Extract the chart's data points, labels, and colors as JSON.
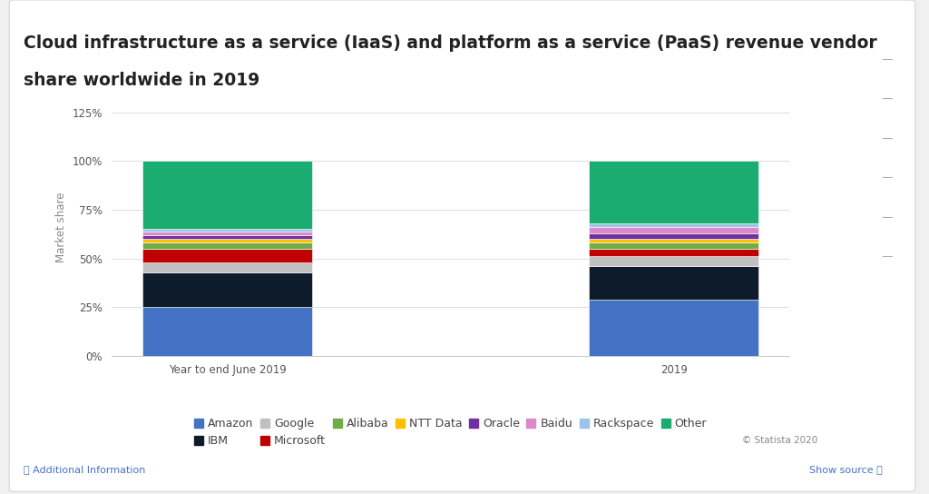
{
  "categories": [
    "Year to end June 2019",
    "2019"
  ],
  "series": [
    {
      "label": "Amazon",
      "values": [
        25,
        29
      ],
      "color": "#4472C4"
    },
    {
      "label": "IBM",
      "values": [
        18,
        17
      ],
      "color": "#0D1B2A"
    },
    {
      "label": "Google",
      "values": [
        5,
        5
      ],
      "color": "#C0C0C0"
    },
    {
      "label": "Microsoft",
      "values": [
        7,
        4
      ],
      "color": "#C00000"
    },
    {
      "label": "Alibaba",
      "values": [
        3,
        3
      ],
      "color": "#70AD47"
    },
    {
      "label": "NTT Data",
      "values": [
        2,
        2
      ],
      "color": "#FFC000"
    },
    {
      "label": "Oracle",
      "values": [
        2,
        3
      ],
      "color": "#7030A0"
    },
    {
      "label": "Baidu",
      "values": [
        2,
        3
      ],
      "color": "#DD88CC"
    },
    {
      "label": "Rackspace",
      "values": [
        1,
        2
      ],
      "color": "#9DC3E6"
    },
    {
      "label": "Other",
      "values": [
        35,
        32
      ],
      "color": "#1BAC72"
    }
  ],
  "ylabel": "Market share",
  "yticks": [
    0,
    25,
    50,
    75,
    100,
    125
  ],
  "ytick_labels": [
    "0%",
    "25%",
    "50%",
    "75%",
    "100%",
    "125%"
  ],
  "ylim": [
    0,
    132
  ],
  "title_line1": "Cloud infrastructure as a service (IaaS) and platform as a service (PaaS) revenue vendor",
  "title_line2": "share worldwide in 2019",
  "title_fontsize": 13.5,
  "background_color": "#F0F0F0",
  "card_color": "#FFFFFF",
  "plot_bg_color": "#FFFFFF",
  "bar_width": 0.38,
  "legend_fontsize": 9,
  "axis_fontsize": 8.5,
  "footer_text": "© Statista 2020",
  "additional_info": "ⓘ Additional Information",
  "show_source": "Show source ⓘ"
}
